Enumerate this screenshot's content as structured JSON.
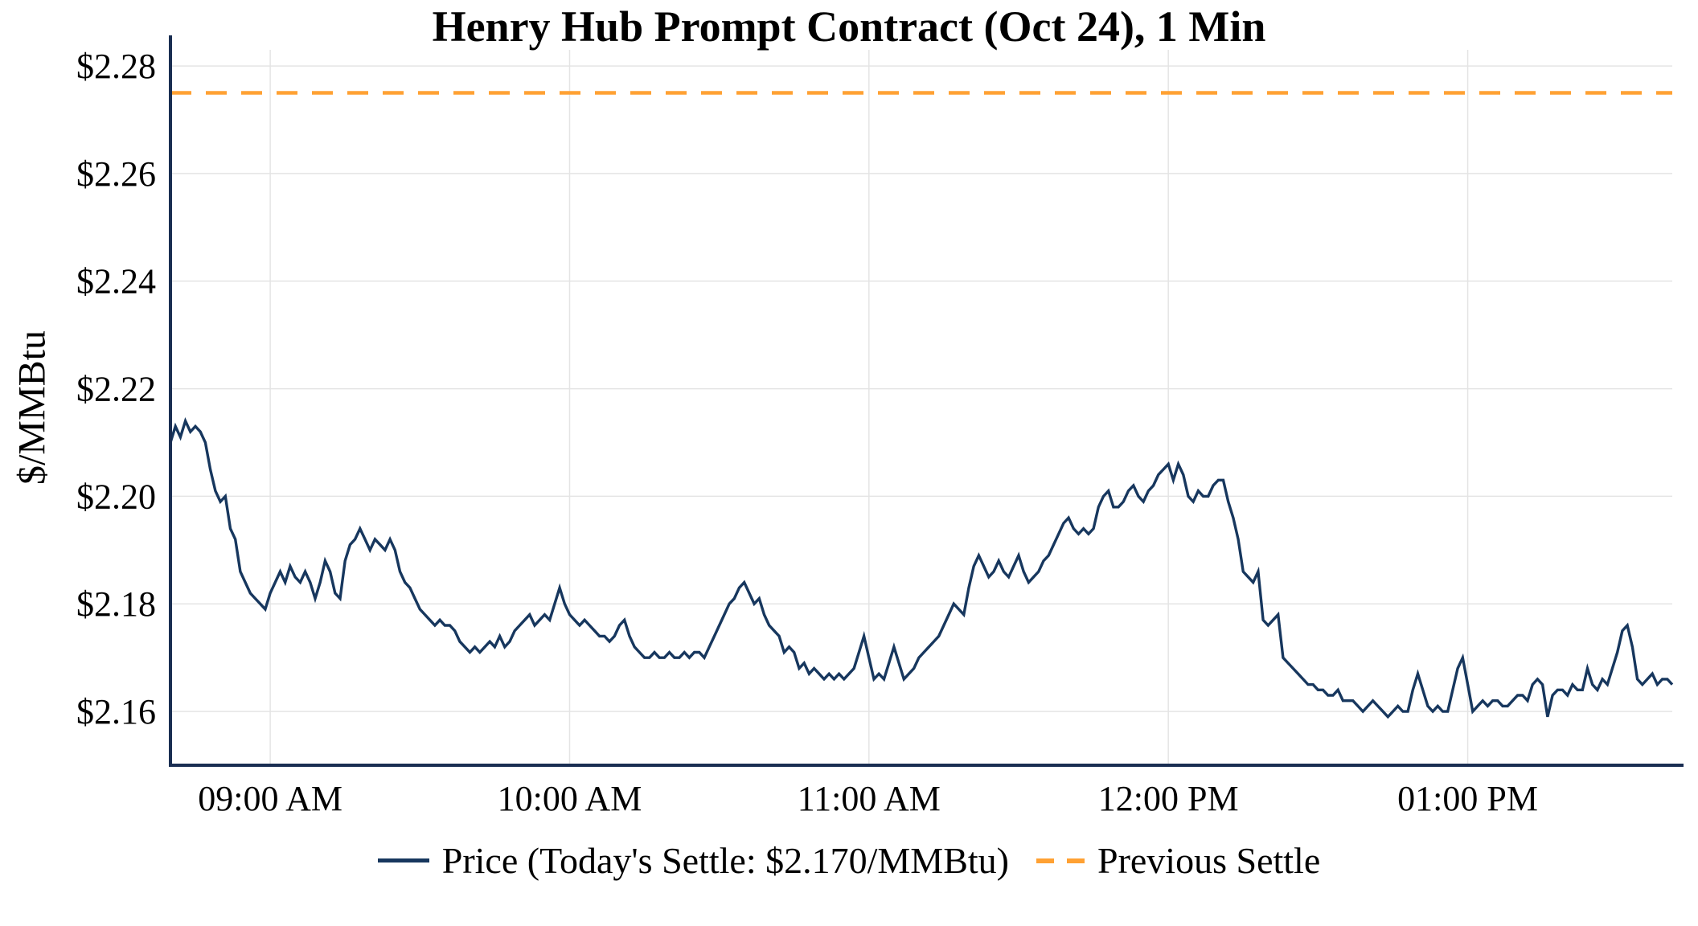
{
  "chart_data": {
    "type": "line",
    "title": "Henry Hub Prompt Contract (Oct 24), 1 Min",
    "xlabel": "",
    "ylabel": "$/MMBtu",
    "ylim": [
      2.15,
      2.283
    ],
    "xlim_minutes": [
      0,
      301
    ],
    "grid": true,
    "legend_position": "bottom-center",
    "colors": {
      "price": "#17375E",
      "previous_settle": "#FFA133",
      "axis": "#1A2E52",
      "grid": "#E4E4E4",
      "text": "#000000"
    },
    "x_ticks": [
      {
        "minute": 20,
        "label": "09:00 AM"
      },
      {
        "minute": 80,
        "label": "10:00 AM"
      },
      {
        "minute": 140,
        "label": "11:00 AM"
      },
      {
        "minute": 200,
        "label": "12:00 PM"
      },
      {
        "minute": 260,
        "label": "01:00 PM"
      }
    ],
    "y_ticks": [
      {
        "value": 2.16,
        "label": "$2.16"
      },
      {
        "value": 2.18,
        "label": "$2.18"
      },
      {
        "value": 2.2,
        "label": "$2.20"
      },
      {
        "value": 2.22,
        "label": "$2.22"
      },
      {
        "value": 2.24,
        "label": "$2.24"
      },
      {
        "value": 2.26,
        "label": "$2.26"
      },
      {
        "value": 2.28,
        "label": "$2.28"
      }
    ],
    "series": [
      {
        "name": "Price (Today's Settle: $2.170/MMBtu)",
        "type": "line",
        "x_start_minute": 0,
        "x_step_minutes": 1,
        "values": [
          2.21,
          2.213,
          2.211,
          2.214,
          2.212,
          2.213,
          2.212,
          2.21,
          2.205,
          2.201,
          2.199,
          2.2,
          2.194,
          2.192,
          2.186,
          2.184,
          2.182,
          2.181,
          2.18,
          2.179,
          2.182,
          2.184,
          2.186,
          2.184,
          2.187,
          2.185,
          2.184,
          2.186,
          2.184,
          2.181,
          2.184,
          2.188,
          2.186,
          2.182,
          2.181,
          2.188,
          2.191,
          2.192,
          2.194,
          2.192,
          2.19,
          2.192,
          2.191,
          2.19,
          2.192,
          2.19,
          2.186,
          2.184,
          2.183,
          2.181,
          2.179,
          2.178,
          2.177,
          2.176,
          2.177,
          2.176,
          2.176,
          2.175,
          2.173,
          2.172,
          2.171,
          2.172,
          2.171,
          2.172,
          2.173,
          2.172,
          2.174,
          2.172,
          2.173,
          2.175,
          2.176,
          2.177,
          2.178,
          2.176,
          2.177,
          2.178,
          2.177,
          2.18,
          2.183,
          2.18,
          2.178,
          2.177,
          2.176,
          2.177,
          2.176,
          2.175,
          2.174,
          2.174,
          2.173,
          2.174,
          2.176,
          2.177,
          2.174,
          2.172,
          2.171,
          2.17,
          2.17,
          2.171,
          2.17,
          2.17,
          2.171,
          2.17,
          2.17,
          2.171,
          2.17,
          2.171,
          2.171,
          2.17,
          2.172,
          2.174,
          2.176,
          2.178,
          2.18,
          2.181,
          2.183,
          2.184,
          2.182,
          2.18,
          2.181,
          2.178,
          2.176,
          2.175,
          2.174,
          2.171,
          2.172,
          2.171,
          2.168,
          2.169,
          2.167,
          2.168,
          2.167,
          2.166,
          2.167,
          2.166,
          2.167,
          2.166,
          2.167,
          2.168,
          2.171,
          2.174,
          2.17,
          2.166,
          2.167,
          2.166,
          2.169,
          2.172,
          2.169,
          2.166,
          2.167,
          2.168,
          2.17,
          2.171,
          2.172,
          2.173,
          2.174,
          2.176,
          2.178,
          2.18,
          2.179,
          2.178,
          2.183,
          2.187,
          2.189,
          2.187,
          2.185,
          2.186,
          2.188,
          2.186,
          2.185,
          2.187,
          2.189,
          2.186,
          2.184,
          2.185,
          2.186,
          2.188,
          2.189,
          2.191,
          2.193,
          2.195,
          2.196,
          2.194,
          2.193,
          2.194,
          2.193,
          2.194,
          2.198,
          2.2,
          2.201,
          2.198,
          2.198,
          2.199,
          2.201,
          2.202,
          2.2,
          2.199,
          2.201,
          2.202,
          2.204,
          2.205,
          2.206,
          2.203,
          2.206,
          2.204,
          2.2,
          2.199,
          2.201,
          2.2,
          2.2,
          2.202,
          2.203,
          2.203,
          2.199,
          2.196,
          2.192,
          2.186,
          2.185,
          2.184,
          2.186,
          2.177,
          2.176,
          2.177,
          2.178,
          2.17,
          2.169,
          2.168,
          2.167,
          2.166,
          2.165,
          2.165,
          2.164,
          2.164,
          2.163,
          2.163,
          2.164,
          2.162,
          2.162,
          2.162,
          2.161,
          2.16,
          2.161,
          2.162,
          2.161,
          2.16,
          2.159,
          2.16,
          2.161,
          2.16,
          2.16,
          2.164,
          2.167,
          2.164,
          2.161,
          2.16,
          2.161,
          2.16,
          2.16,
          2.164,
          2.168,
          2.17,
          2.165,
          2.16,
          2.161,
          2.162,
          2.161,
          2.162,
          2.162,
          2.161,
          2.161,
          2.162,
          2.163,
          2.163,
          2.162,
          2.165,
          2.166,
          2.165,
          2.159,
          2.163,
          2.164,
          2.164,
          2.163,
          2.165,
          2.164,
          2.164,
          2.168,
          2.165,
          2.164,
          2.166,
          2.165,
          2.168,
          2.171,
          2.175,
          2.176,
          2.172,
          2.166,
          2.165,
          2.166,
          2.167,
          2.165,
          2.166,
          2.166,
          2.165
        ]
      },
      {
        "name": "Previous Settle",
        "type": "hline",
        "value": 2.275,
        "dash": [
          26,
          18
        ]
      }
    ]
  }
}
